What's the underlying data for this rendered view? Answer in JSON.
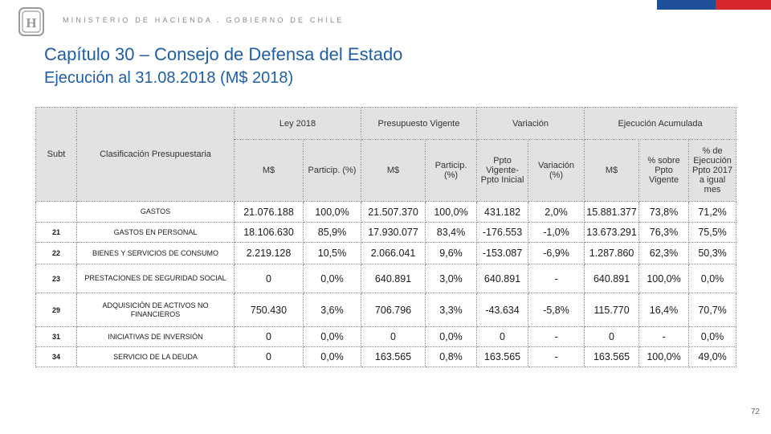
{
  "header": {
    "ministry": "MINISTERIO DE HACIENDA . GOBIERNO DE CHILE",
    "logo_text": "H",
    "flag_colors": [
      "#1f4e9a",
      "#d6282b"
    ]
  },
  "title": {
    "line1": "Capítulo 30 – Consejo de Defensa del Estado",
    "line2": "Ejecución al 31.08.2018 (M$ 2018)"
  },
  "table": {
    "group_headers": {
      "ley": "Ley 2018",
      "vigente": "Presupuesto Vigente",
      "variacion": "Variación",
      "ejecucion": "Ejecución Acumulada"
    },
    "col_headers": {
      "subt": "Subt",
      "clasificacion": "Clasificación Presupuestaria",
      "ley_m": "M$",
      "ley_particip": "Particip. (%)",
      "vig_m": "M$",
      "vig_particip_1": "Particip.",
      "vig_particip_2": "(%)",
      "ppto_1": "Ppto",
      "ppto_2": "Vigente-",
      "ppto_3": "Ppto Inicial",
      "var_1": "Variación",
      "var_2": "(%)",
      "ejec_m": "M$",
      "sobre_1": "% sobre",
      "sobre_2": "Ppto",
      "sobre_3": "Vigente",
      "deejec_1": "% de",
      "deejec_2": "Ejecución",
      "deejec_3": "Ppto 2017",
      "deejec_4": "a igual mes"
    },
    "rows": [
      {
        "subt": "",
        "clasificacion": "GASTOS",
        "ley_m": "21.076.188",
        "ley_pct": "100,0%",
        "vig_m": "21.507.370",
        "vig_pct": "100,0%",
        "ppto_diff": "431.182",
        "var_pct": "2,0%",
        "ejec_m": "15.881.377",
        "sobre_vig": "73,8%",
        "pct_ejec_2017": "71,2%"
      },
      {
        "subt": "21",
        "clasificacion": "GASTOS EN PERSONAL",
        "ley_m": "18.106.630",
        "ley_pct": "85,9%",
        "vig_m": "17.930.077",
        "vig_pct": "83,4%",
        "ppto_diff": "-176.553",
        "var_pct": "-1,0%",
        "ejec_m": "13.673.291",
        "sobre_vig": "76,3%",
        "pct_ejec_2017": "75,5%"
      },
      {
        "subt": "22",
        "clasificacion": "BIENES Y SERVICIOS DE CONSUMO",
        "ley_m": "2.219.128",
        "ley_pct": "10,5%",
        "vig_m": "2.066.041",
        "vig_pct": "9,6%",
        "ppto_diff": "-153.087",
        "var_pct": "-6,9%",
        "ejec_m": "1.287.860",
        "sobre_vig": "62,3%",
        "pct_ejec_2017": "50,3%"
      },
      {
        "subt": "23",
        "clasificacion": "PRESTACIONES DE SEGURIDAD SOCIAL",
        "ley_m": "0",
        "ley_pct": "0,0%",
        "vig_m": "640.891",
        "vig_pct": "3,0%",
        "ppto_diff": "640.891",
        "var_pct": "-",
        "ejec_m": "640.891",
        "sobre_vig": "100,0%",
        "pct_ejec_2017": "0,0%"
      },
      {
        "subt": "29",
        "clasificacion_1": "ADQUISICIÓN DE ACTIVOS NO",
        "clasificacion_2": "FINANCIEROS",
        "ley_m": "750.430",
        "ley_pct": "3,6%",
        "vig_m": "706.796",
        "vig_pct": "3,3%",
        "ppto_diff": "-43.634",
        "var_pct": "-5,8%",
        "ejec_m": "115.770",
        "sobre_vig": "16,4%",
        "pct_ejec_2017": "70,7%"
      },
      {
        "subt": "31",
        "clasificacion": "INICIATIVAS DE INVERSIÓN",
        "ley_m": "0",
        "ley_pct": "0,0%",
        "vig_m": "0",
        "vig_pct": "0,0%",
        "ppto_diff": "0",
        "var_pct": "-",
        "ejec_m": "0",
        "sobre_vig": "-",
        "pct_ejec_2017": "0,0%"
      },
      {
        "subt": "34",
        "clasificacion": "SERVICIO DE LA DEUDA",
        "ley_m": "0",
        "ley_pct": "0,0%",
        "vig_m": "163.565",
        "vig_pct": "0,8%",
        "ppto_diff": "163.565",
        "var_pct": "-",
        "ejec_m": "163.565",
        "sobre_vig": "100,0%",
        "pct_ejec_2017": "49,0%"
      }
    ]
  },
  "page_number": "72"
}
